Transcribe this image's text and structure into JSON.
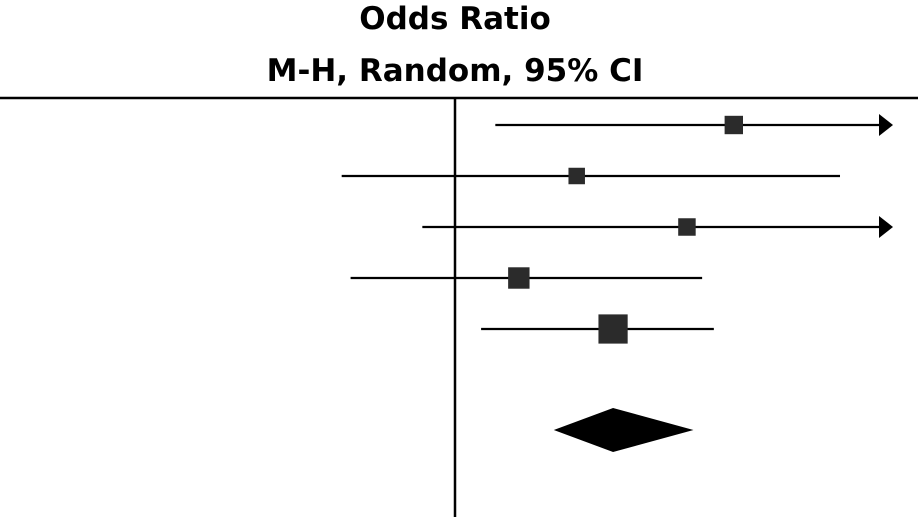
{
  "chart_data": {
    "type": "forest",
    "title": "Odds Ratio",
    "subtitle": "M-H, Random, 95% CI",
    "scale": "log",
    "reference_value": 1,
    "colors": {
      "line": "#000000",
      "marker": "#2b2b2b"
    },
    "studies": [
      {
        "or": 16.5,
        "ci_low": 1.5,
        "ci_high": 100,
        "weight": 0.12,
        "arrow_right": true
      },
      {
        "or": 3.4,
        "ci_low": 0.32,
        "ci_high": 48,
        "weight": 0.08,
        "arrow_right": false
      },
      {
        "or": 10.3,
        "ci_low": 0.72,
        "ci_high": 100,
        "weight": 0.1,
        "arrow_right": true
      },
      {
        "or": 1.9,
        "ci_low": 0.35,
        "ci_high": 12,
        "weight": 0.2,
        "arrow_right": false
      },
      {
        "or": 4.9,
        "ci_low": 1.3,
        "ci_high": 13.5,
        "weight": 0.5,
        "arrow_right": false
      }
    ],
    "pooled": {
      "or": 4.9,
      "ci_low": 2.7,
      "ci_high": 11
    }
  }
}
